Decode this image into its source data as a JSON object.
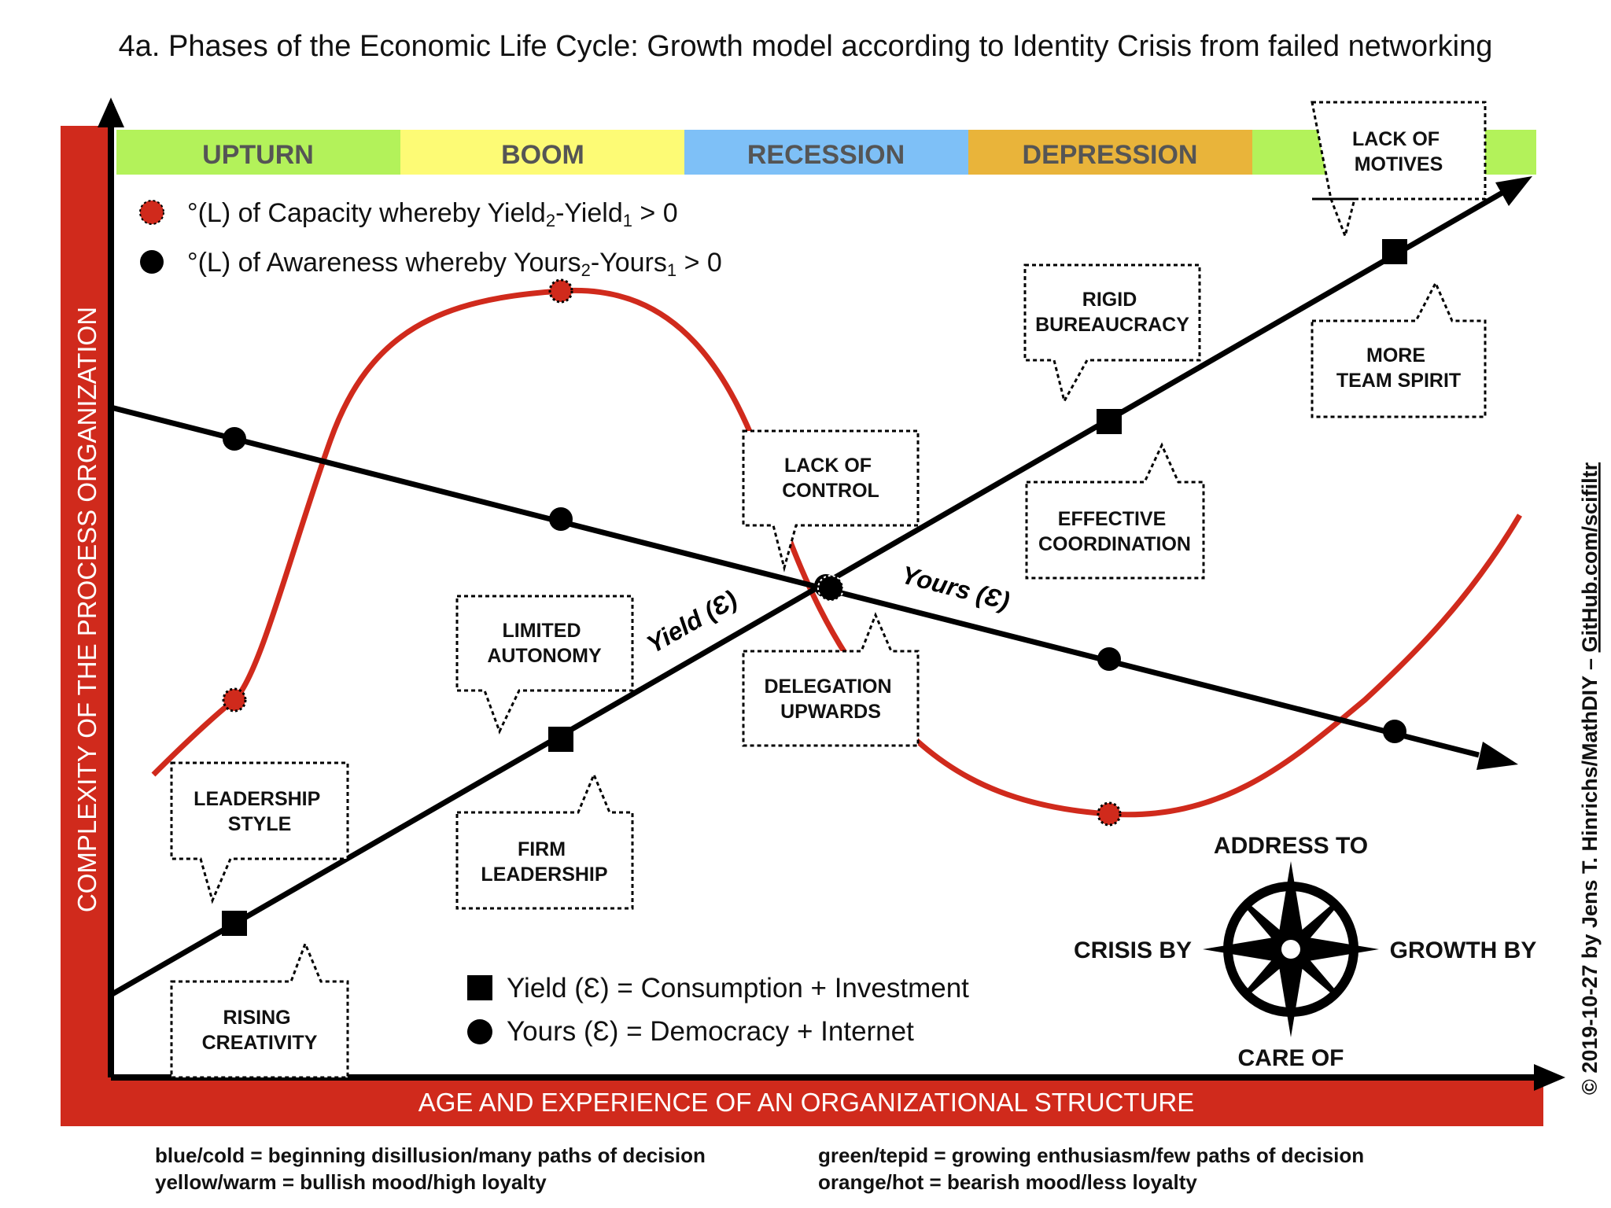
{
  "title": "4a. Phases of the Economic Life Cycle: Growth model according to Identity Crisis from failed networking",
  "phases": [
    {
      "label": "UPTURN",
      "color": "#b3f25a"
    },
    {
      "label": "BOOM",
      "color": "#fdfb75"
    },
    {
      "label": "RECESSION",
      "color": "#7ec0f7"
    },
    {
      "label": "DEPRESSION",
      "color": "#e9b43a"
    },
    {
      "label": "",
      "color": "#b3f25a"
    }
  ],
  "axes": {
    "y_label": "COMPLEXITY OF THE PROCESS ORGANIZATION",
    "x_label": "AGE AND EXPERIENCE OF AN ORGANIZATIONAL STRUCTURE",
    "bar_color": "#d02a1c"
  },
  "legend_top": [
    {
      "marker": "red-circle",
      "prefix": "°(L) of Capacity whereby Yield",
      "sub1": "2",
      "mid": "-Yield",
      "sub2": "1",
      "suffix": " > 0"
    },
    {
      "marker": "black-circle",
      "prefix": "°(L) of Awareness whereby Yours",
      "sub1": "2",
      "mid": "-Yours",
      "sub2": "1",
      "suffix": " > 0"
    }
  ],
  "legend_bottom": [
    {
      "marker": "square",
      "text": "Yield (Ɛ) = Consumption + Investment"
    },
    {
      "marker": "circle",
      "text": "Yours (Ɛ) = Democracy + Internet"
    }
  ],
  "line_labels": {
    "yield": "Yield (Ɛ)",
    "yours": "Yours (Ɛ)"
  },
  "callouts": {
    "lack_of_motives": [
      "LACK OF",
      "MOTIVES"
    ],
    "more_team_spirit": [
      "MORE",
      "TEAM SPIRIT"
    ],
    "rigid_bureaucracy": [
      "RIGID",
      "BUREAUCRACY"
    ],
    "effective_coordination": [
      "EFFECTIVE",
      "COORDINATION"
    ],
    "lack_of_control": [
      "LACK OF",
      "CONTROL"
    ],
    "delegation_upwards": [
      "DELEGATION",
      "UPWARDS"
    ],
    "limited_autonomy": [
      "LIMITED",
      "AUTONOMY"
    ],
    "firm_leadership": [
      "FIRM",
      "LEADERSHIP"
    ],
    "leadership_style": [
      "LEADERSHIP",
      "STYLE"
    ],
    "rising_creativity": [
      "RISING",
      "CREATIVITY"
    ]
  },
  "compass": {
    "top": "ADDRESS TO",
    "left": "CRISIS BY",
    "right": "GROWTH BY",
    "bottom": "CARE OF"
  },
  "credit": {
    "prefix": "© 2019-10-27 by Jens T. Hinrichs/MathDIY – ",
    "link": "GitHub.com/scifiltr"
  },
  "notes": {
    "left_1": "blue/cold = beginning disillusion/many paths of decision",
    "left_2": "yellow/warm = bullish mood/high loyalty",
    "right_1": "green/tepid = growing enthusiasm/few paths of decision",
    "right_2": "orange/hot = bearish mood/less loyalty"
  }
}
